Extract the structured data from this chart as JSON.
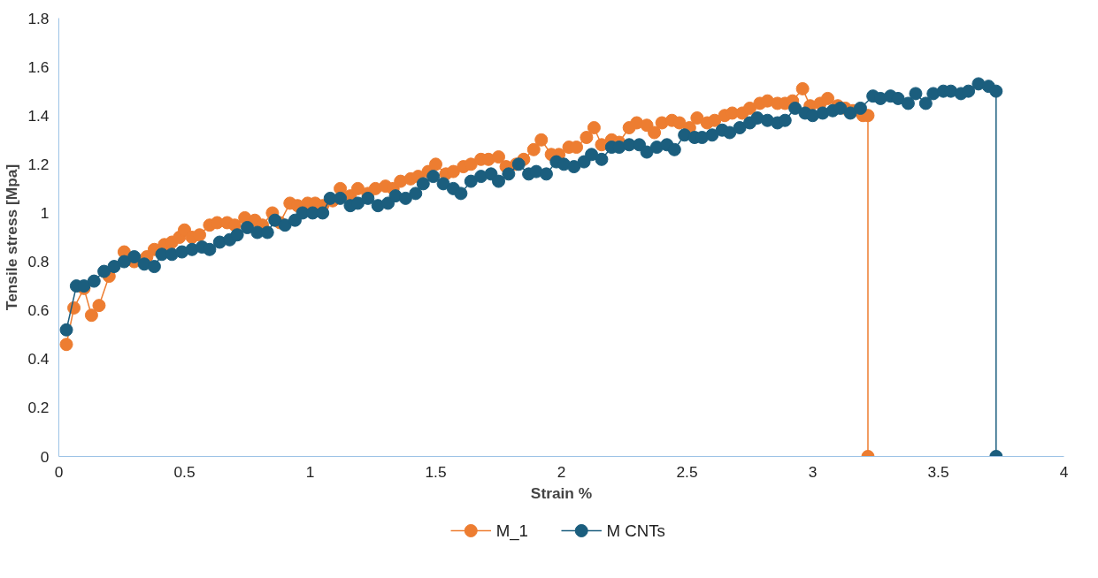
{
  "chart_data": {
    "type": "line",
    "xlabel": "Strain %",
    "ylabel": "Tensile stress [Mpa]",
    "xlim": [
      0,
      4
    ],
    "ylim": [
      0,
      1.8
    ],
    "xticks": [
      0,
      0.5,
      1,
      1.5,
      2,
      2.5,
      3,
      3.5,
      4
    ],
    "yticks": [
      0,
      0.2,
      0.4,
      0.6,
      0.8,
      1,
      1.2,
      1.4,
      1.6,
      1.8
    ],
    "grid": false,
    "legend": "bottom",
    "marker": "circle",
    "line_style": "solid",
    "series": [
      {
        "name": "M_1",
        "color": "#ed7d31",
        "x": [
          0.03,
          0.06,
          0.1,
          0.13,
          0.16,
          0.2,
          0.26,
          0.3,
          0.35,
          0.38,
          0.42,
          0.45,
          0.48,
          0.5,
          0.53,
          0.56,
          0.6,
          0.63,
          0.67,
          0.7,
          0.74,
          0.78,
          0.81,
          0.85,
          0.88,
          0.92,
          0.95,
          0.99,
          1.02,
          1.05,
          1.09,
          1.12,
          1.16,
          1.19,
          1.23,
          1.26,
          1.3,
          1.33,
          1.36,
          1.4,
          1.43,
          1.47,
          1.5,
          1.54,
          1.57,
          1.61,
          1.64,
          1.68,
          1.71,
          1.75,
          1.78,
          1.82,
          1.85,
          1.89,
          1.92,
          1.96,
          1.99,
          2.03,
          2.06,
          2.1,
          2.13,
          2.16,
          2.2,
          2.23,
          2.27,
          2.3,
          2.34,
          2.37,
          2.4,
          2.44,
          2.47,
          2.51,
          2.54,
          2.58,
          2.61,
          2.65,
          2.68,
          2.72,
          2.75,
          2.79,
          2.82,
          2.86,
          2.89,
          2.92,
          2.96,
          2.99,
          3.03,
          3.06,
          3.1,
          3.13,
          3.16,
          3.2,
          3.22,
          3.22
        ],
        "values": [
          0.46,
          0.61,
          0.69,
          0.58,
          0.62,
          0.74,
          0.84,
          0.8,
          0.82,
          0.85,
          0.87,
          0.88,
          0.9,
          0.93,
          0.9,
          0.91,
          0.95,
          0.96,
          0.96,
          0.95,
          0.98,
          0.97,
          0.95,
          1.0,
          0.96,
          1.04,
          1.03,
          1.04,
          1.04,
          1.03,
          1.05,
          1.1,
          1.07,
          1.1,
          1.08,
          1.1,
          1.11,
          1.1,
          1.13,
          1.14,
          1.15,
          1.17,
          1.2,
          1.16,
          1.17,
          1.19,
          1.2,
          1.22,
          1.22,
          1.23,
          1.19,
          1.2,
          1.22,
          1.26,
          1.3,
          1.24,
          1.24,
          1.27,
          1.27,
          1.31,
          1.35,
          1.28,
          1.3,
          1.29,
          1.35,
          1.37,
          1.36,
          1.33,
          1.37,
          1.38,
          1.37,
          1.35,
          1.39,
          1.37,
          1.38,
          1.4,
          1.41,
          1.41,
          1.43,
          1.45,
          1.46,
          1.45,
          1.45,
          1.46,
          1.51,
          1.44,
          1.45,
          1.47,
          1.44,
          1.43,
          1.42,
          1.4,
          1.4,
          0
        ]
      },
      {
        "name": "M CNTs",
        "color": "#1b5e7e",
        "x": [
          0.03,
          0.07,
          0.1,
          0.14,
          0.18,
          0.22,
          0.26,
          0.3,
          0.34,
          0.38,
          0.41,
          0.45,
          0.49,
          0.53,
          0.57,
          0.6,
          0.64,
          0.68,
          0.71,
          0.75,
          0.79,
          0.83,
          0.86,
          0.9,
          0.94,
          0.97,
          1.01,
          1.05,
          1.08,
          1.12,
          1.16,
          1.19,
          1.23,
          1.27,
          1.31,
          1.34,
          1.38,
          1.42,
          1.45,
          1.49,
          1.53,
          1.57,
          1.6,
          1.64,
          1.68,
          1.72,
          1.75,
          1.79,
          1.83,
          1.87,
          1.9,
          1.94,
          1.98,
          2.01,
          2.05,
          2.09,
          2.12,
          2.16,
          2.2,
          2.23,
          2.27,
          2.31,
          2.34,
          2.38,
          2.42,
          2.45,
          2.49,
          2.53,
          2.56,
          2.6,
          2.64,
          2.67,
          2.71,
          2.75,
          2.78,
          2.82,
          2.86,
          2.89,
          2.93,
          2.97,
          3.0,
          3.04,
          3.08,
          3.11,
          3.15,
          3.19,
          3.24,
          3.27,
          3.31,
          3.34,
          3.38,
          3.41,
          3.45,
          3.48,
          3.52,
          3.55,
          3.59,
          3.62,
          3.66,
          3.7,
          3.73,
          3.73
        ],
        "values": [
          0.52,
          0.7,
          0.7,
          0.72,
          0.76,
          0.78,
          0.8,
          0.82,
          0.79,
          0.78,
          0.83,
          0.83,
          0.84,
          0.85,
          0.86,
          0.85,
          0.88,
          0.89,
          0.91,
          0.94,
          0.92,
          0.92,
          0.97,
          0.95,
          0.97,
          1.0,
          1.0,
          1.0,
          1.06,
          1.06,
          1.03,
          1.04,
          1.06,
          1.03,
          1.04,
          1.07,
          1.06,
          1.08,
          1.12,
          1.15,
          1.12,
          1.1,
          1.08,
          1.13,
          1.15,
          1.16,
          1.13,
          1.16,
          1.2,
          1.16,
          1.17,
          1.16,
          1.21,
          1.2,
          1.19,
          1.21,
          1.24,
          1.22,
          1.27,
          1.27,
          1.28,
          1.28,
          1.25,
          1.27,
          1.28,
          1.26,
          1.32,
          1.31,
          1.31,
          1.32,
          1.34,
          1.33,
          1.35,
          1.37,
          1.39,
          1.38,
          1.37,
          1.38,
          1.43,
          1.41,
          1.4,
          1.41,
          1.42,
          1.43,
          1.41,
          1.43,
          1.48,
          1.47,
          1.48,
          1.47,
          1.45,
          1.49,
          1.45,
          1.49,
          1.5,
          1.5,
          1.49,
          1.5,
          1.53,
          1.52,
          1.5,
          0
        ]
      }
    ]
  }
}
